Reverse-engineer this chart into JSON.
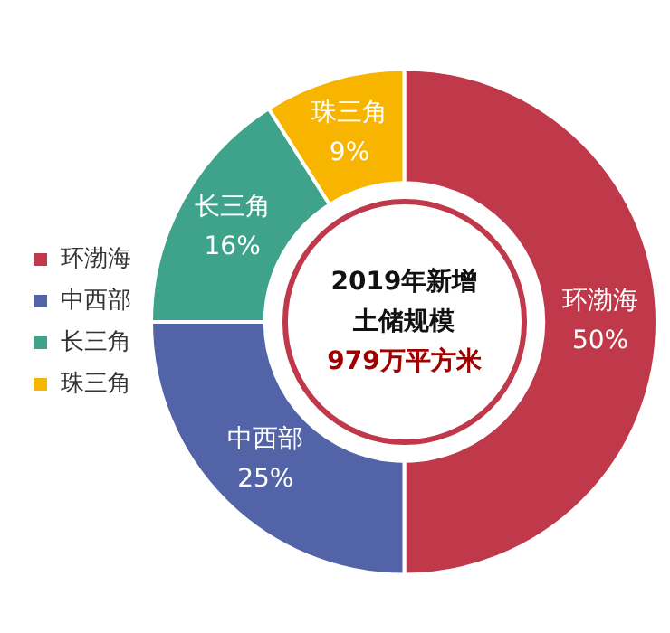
{
  "chart_data": {
    "type": "donut",
    "categories": [
      "环渤海",
      "中西部",
      "长三角",
      "珠三角"
    ],
    "values": [
      50,
      25,
      16,
      9
    ],
    "colors": [
      "#c0394b",
      "#5263a8",
      "#3fa38c",
      "#f7b500"
    ],
    "value_labels": [
      "50%",
      "25%",
      "16%",
      "9%"
    ],
    "legend": "left",
    "annotations": [
      "2019年新增",
      "土储规模",
      "979万平方米"
    ]
  }
}
